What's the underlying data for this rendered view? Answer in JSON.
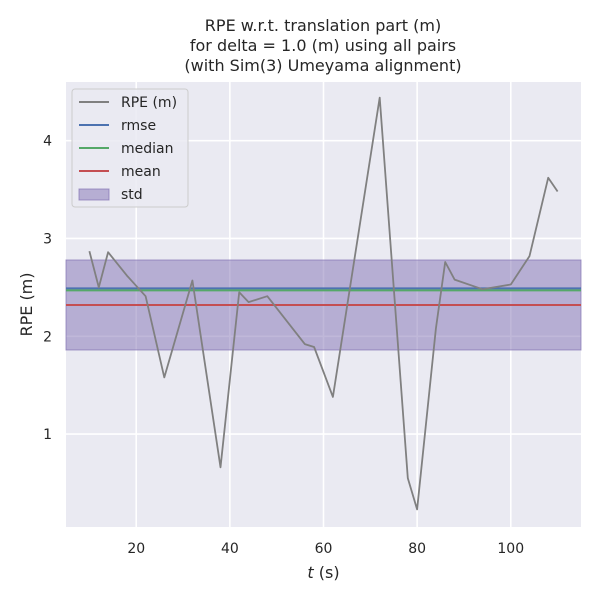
{
  "chart_data": {
    "type": "line",
    "title_lines": [
      "RPE w.r.t. translation part (m)",
      "for delta = 1.0 (m) using all pairs",
      "(with Sim(3) Umeyama alignment)"
    ],
    "xlabel_var": "t",
    "xlabel_unit": " (s)",
    "ylabel": "RPE (m)",
    "xlim": [
      5,
      115
    ],
    "ylim": [
      0.05,
      4.6
    ],
    "xticks": [
      20,
      40,
      60,
      80,
      100
    ],
    "yticks": [
      1,
      2,
      3,
      4
    ],
    "grid": true,
    "legend_position": "top-left",
    "series": [
      {
        "name": "RPE (m)",
        "color": "#808080",
        "x": [
          10,
          12,
          14,
          18,
          22,
          26,
          32,
          38,
          42,
          44,
          48,
          56,
          58,
          62,
          72,
          78,
          80,
          84,
          86,
          88,
          94,
          100,
          104,
          108,
          110
        ],
        "y": [
          2.87,
          2.5,
          2.86,
          2.62,
          2.41,
          1.58,
          2.57,
          0.66,
          2.45,
          2.35,
          2.41,
          1.92,
          1.89,
          1.38,
          4.44,
          0.55,
          0.23,
          2.08,
          2.76,
          2.58,
          2.48,
          2.53,
          2.82,
          3.62,
          3.48
        ]
      }
    ],
    "stats": [
      {
        "name": "rmse",
        "value": 2.49,
        "color": "#4c72b0"
      },
      {
        "name": "median",
        "value": 2.47,
        "color": "#55a868"
      },
      {
        "name": "mean",
        "value": 2.32,
        "color": "#c44e52"
      }
    ],
    "std_band": {
      "name": "std",
      "low": 1.86,
      "high": 2.78,
      "color": "#8172b3"
    }
  }
}
